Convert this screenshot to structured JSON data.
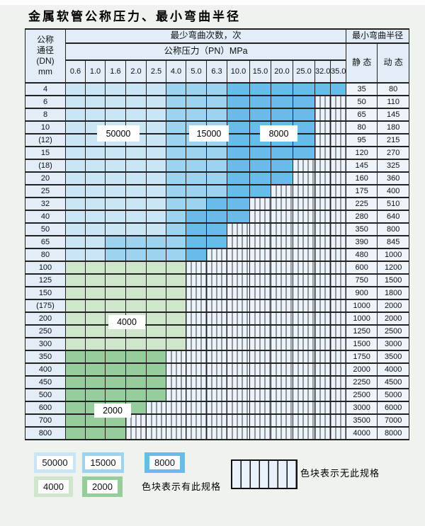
{
  "title": "金属软管公称压力、最小弯曲半径",
  "table": {
    "corner_header": [
      "公称",
      "通径",
      "(DN)",
      "mm"
    ],
    "bend_cycles_header": "最少弯曲次数，次",
    "pressure_header": "公称压力（PN）MPa",
    "radius_header": "最小弯曲半径",
    "static_header": "静 态",
    "dynamic_header": "动 态",
    "pressure_cols": [
      "0.6",
      "1.0",
      "1.6",
      "2.0",
      "2.5",
      "4.0",
      "5.0",
      "6.3",
      "10.0",
      "15.0",
      "20.0",
      "25.0",
      "32.0",
      "35.0"
    ],
    "rows": [
      {
        "dn": "4",
        "static": "35",
        "dynamic": "80",
        "palette": "blue",
        "colored_cols": 14,
        "mid_from": 5,
        "dark_from": 8
      },
      {
        "dn": "6",
        "static": "50",
        "dynamic": "110",
        "palette": "blue",
        "colored_cols": 12,
        "mid_from": 5,
        "dark_from": 8
      },
      {
        "dn": "8",
        "static": "65",
        "dynamic": "145",
        "palette": "blue",
        "colored_cols": 12,
        "mid_from": 5,
        "dark_from": 8
      },
      {
        "dn": "10",
        "static": "80",
        "dynamic": "180",
        "palette": "blue",
        "colored_cols": 12,
        "mid_from": 5,
        "dark_from": 8
      },
      {
        "dn": "(12)",
        "static": "95",
        "dynamic": "215",
        "palette": "blue",
        "colored_cols": 12,
        "mid_from": 5,
        "dark_from": 8
      },
      {
        "dn": "15",
        "static": "120",
        "dynamic": "270",
        "palette": "blue",
        "colored_cols": 12,
        "mid_from": 5,
        "dark_from": 8
      },
      {
        "dn": "(18)",
        "static": "145",
        "dynamic": "325",
        "palette": "blue",
        "colored_cols": 11,
        "mid_from": 5,
        "dark_from": 8
      },
      {
        "dn": "20",
        "static": "160",
        "dynamic": "360",
        "palette": "blue",
        "colored_cols": 11,
        "mid_from": 5,
        "dark_from": 8
      },
      {
        "dn": "25",
        "static": "175",
        "dynamic": "400",
        "palette": "blue",
        "colored_cols": 10,
        "mid_from": 5,
        "dark_from": 8
      },
      {
        "dn": "32",
        "static": "225",
        "dynamic": "510",
        "palette": "blue",
        "colored_cols": 9,
        "mid_from": 5,
        "dark_from": 7
      },
      {
        "dn": "40",
        "static": "280",
        "dynamic": "640",
        "palette": "blue",
        "colored_cols": 9,
        "mid_from": 5,
        "dark_from": 6
      },
      {
        "dn": "50",
        "static": "350",
        "dynamic": "800",
        "palette": "blue",
        "colored_cols": 8,
        "mid_from": 5,
        "dark_from": 6
      },
      {
        "dn": "65",
        "static": "390",
        "dynamic": "845",
        "palette": "blue",
        "colored_cols": 8,
        "mid_from": 2,
        "dark_from": 6
      },
      {
        "dn": "80",
        "static": "480",
        "dynamic": "1000",
        "palette": "blue",
        "colored_cols": 7,
        "mid_from": 2,
        "dark_from": 6
      },
      {
        "dn": "100",
        "static": "600",
        "dynamic": "1200",
        "palette": "green-light",
        "colored_cols": 6
      },
      {
        "dn": "125",
        "static": "750",
        "dynamic": "1500",
        "palette": "green-light",
        "colored_cols": 6
      },
      {
        "dn": "150",
        "static": "900",
        "dynamic": "1800",
        "palette": "green-light",
        "colored_cols": 6
      },
      {
        "dn": "(175)",
        "static": "1000",
        "dynamic": "2000",
        "palette": "green-light",
        "colored_cols": 6
      },
      {
        "dn": "200",
        "static": "1000",
        "dynamic": "2000",
        "palette": "green-light",
        "colored_cols": 6
      },
      {
        "dn": "250",
        "static": "1250",
        "dynamic": "2500",
        "palette": "green-light",
        "colored_cols": 6
      },
      {
        "dn": "300",
        "static": "1500",
        "dynamic": "3000",
        "palette": "green-light",
        "colored_cols": 6
      },
      {
        "dn": "350",
        "static": "1750",
        "dynamic": "3500",
        "palette": "green-dark",
        "colored_cols": 5
      },
      {
        "dn": "400",
        "static": "2000",
        "dynamic": "4000",
        "palette": "green-dark",
        "colored_cols": 5
      },
      {
        "dn": "450",
        "static": "2250",
        "dynamic": "4500",
        "palette": "green-dark",
        "colored_cols": 5
      },
      {
        "dn": "500",
        "static": "2500",
        "dynamic": "5000",
        "palette": "green-dark",
        "colored_cols": 5
      },
      {
        "dn": "600",
        "static": "3000",
        "dynamic": "6000",
        "palette": "green-dark",
        "colored_cols": 4
      },
      {
        "dn": "700",
        "static": "3500",
        "dynamic": "7000",
        "palette": "green-dark",
        "colored_cols": 3
      },
      {
        "dn": "800",
        "static": "4000",
        "dynamic": "8000",
        "palette": "green-dark",
        "colored_cols": 3
      }
    ]
  },
  "zone_labels": {
    "cycles_50000": "50000",
    "cycles_15000": "15000",
    "cycles_8000": "8000",
    "cycles_4000": "4000",
    "cycles_2000": "2000"
  },
  "legend": {
    "sw_50000": "50000",
    "sw_15000": "15000",
    "sw_8000": "8000",
    "sw_4000": "4000",
    "sw_2000": "2000",
    "has_spec_text": "色块表示有此规格",
    "no_spec_text": "色块表示无此规格"
  },
  "colors": {
    "blue_light": "#c9e5f6",
    "blue_mid": "#9dd2f0",
    "blue_dark": "#67bce9",
    "green_light": "#cfe6cc",
    "green_dark": "#96cd9d"
  }
}
